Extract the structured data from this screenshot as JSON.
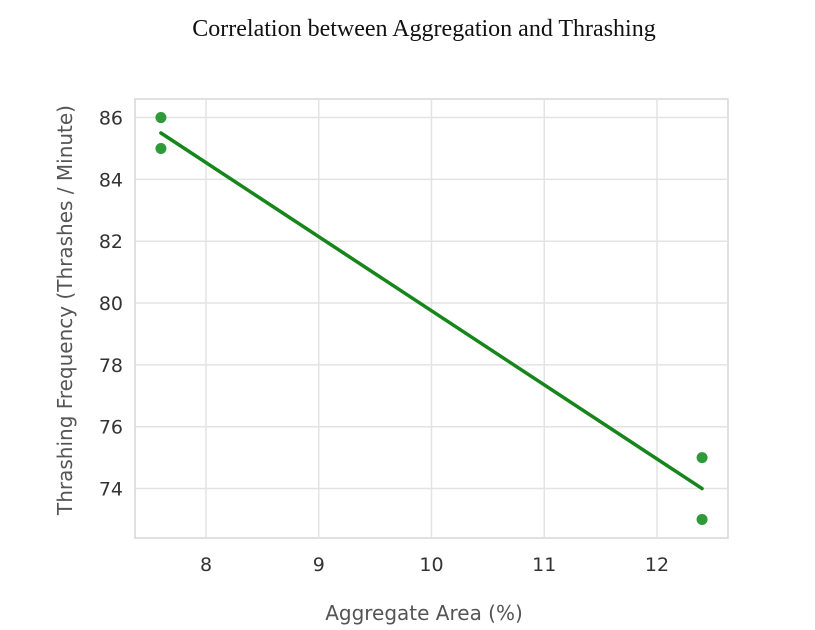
{
  "chart_data": {
    "type": "scatter",
    "title": "Correlation between Aggregation and Thrashing",
    "xlabel": "Aggregate Area (%)",
    "ylabel": "Thrashing Frequency (Thrashes / Minute)",
    "xlim": [
      7.37,
      12.63
    ],
    "ylim": [
      72.4,
      86.6
    ],
    "xticks": [
      8,
      9,
      10,
      11,
      12
    ],
    "yticks": [
      74,
      76,
      78,
      80,
      82,
      84,
      86
    ],
    "grid": true,
    "colors": {
      "points": "#2e9a3a",
      "trendline": "#17861a"
    },
    "series": [
      {
        "type": "scatter",
        "x": [
          7.6,
          7.6,
          12.4,
          12.4
        ],
        "y": [
          86,
          85,
          75,
          73
        ]
      }
    ],
    "trendline": {
      "type": "line",
      "x": [
        7.6,
        12.4
      ],
      "y": [
        85.5,
        74.0
      ]
    }
  }
}
